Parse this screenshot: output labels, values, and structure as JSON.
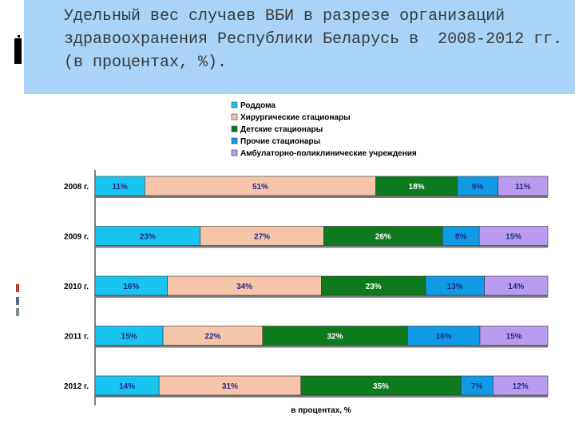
{
  "slide": {
    "title": "Удельный вес случаев ВБИ в разрезе организаций здравоохранения Республики Беларусь в  2008-2012 гг. (в процентах, %)."
  },
  "chart_data": {
    "type": "bar",
    "stacked": true,
    "orientation": "horizontal",
    "categories": [
      "2008 г.",
      "2009 г.",
      "2010 г.",
      "2011 г.",
      "2012 г."
    ],
    "series": [
      {
        "name": "Роддома",
        "color": "#17c4f0",
        "values": [
          11,
          23,
          16,
          15,
          14
        ],
        "labels": [
          "11%",
          "23%",
          "16%",
          "15%",
          "14%"
        ]
      },
      {
        "name": "Хирургические стационары",
        "color": "#f6c4a8",
        "values": [
          51,
          27,
          34,
          22,
          31
        ],
        "labels": [
          "51%",
          "27%",
          "34%",
          "22%",
          "31%"
        ]
      },
      {
        "name": "Детские стационары",
        "color": "#0d7a1e",
        "values": [
          18,
          26,
          23,
          32,
          35
        ],
        "labels": [
          "18%",
          "26%",
          "23%",
          "32%",
          "35%"
        ]
      },
      {
        "name": "Прочие стационары",
        "color": "#0f9be6",
        "values": [
          9,
          8,
          13,
          16,
          7
        ],
        "labels": [
          "9%",
          "8%",
          "13%",
          "16%",
          "7%"
        ]
      },
      {
        "name": "Амбулаторно-поликлинические учреждения",
        "color": "#b99cf0",
        "values": [
          11,
          15,
          14,
          15,
          12
        ],
        "labels": [
          "11%",
          "15%",
          "14%",
          "15%",
          "12%"
        ]
      }
    ],
    "xlabel": "в процентах, %",
    "legend_position": "top",
    "grid": false
  }
}
